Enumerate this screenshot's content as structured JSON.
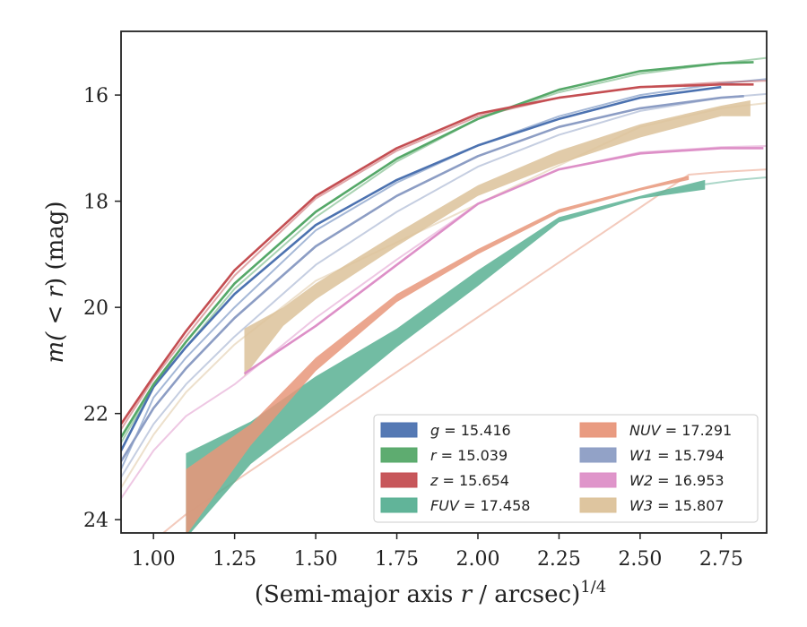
{
  "chart_data": {
    "type": "line",
    "xlabel_main": "(Semi-major axis ",
    "xlabel_var": "r",
    "xlabel_unit": " / arcsec)",
    "xlabel_exp": "1/4",
    "ylabel_main": "m(",
    "ylabel_lt": " < ",
    "ylabel_var": "r",
    "ylabel_unit": ") (mag)",
    "xlim": [
      0.9,
      2.89
    ],
    "ylim": [
      24.25,
      14.8
    ],
    "x_ticks": [
      1.0,
      1.25,
      1.5,
      1.75,
      2.0,
      2.25,
      2.5,
      2.75
    ],
    "x_tick_labels": [
      "1.00",
      "1.25",
      "1.50",
      "1.75",
      "2.00",
      "2.25",
      "2.50",
      "2.75"
    ],
    "y_ticks": [
      16,
      18,
      20,
      22,
      24
    ],
    "y_tick_labels": [
      "16",
      "18",
      "20",
      "22",
      "24"
    ],
    "grid": false,
    "legend_position": "lower-right",
    "series": [
      {
        "band": "g",
        "label": "g = 15.416",
        "color": "#4c72b0",
        "model": [
          [
            0.9,
            23.05
          ],
          [
            1.0,
            21.7
          ],
          [
            1.1,
            20.95
          ],
          [
            1.25,
            20.0
          ],
          [
            1.5,
            18.55
          ],
          [
            1.75,
            17.65
          ],
          [
            2.0,
            16.95
          ],
          [
            2.25,
            16.4
          ],
          [
            2.5,
            16.0
          ],
          [
            2.75,
            15.78
          ],
          [
            2.89,
            15.7
          ]
        ],
        "data": [
          [
            0.9,
            22.7
          ],
          [
            1.0,
            21.5
          ],
          [
            1.1,
            20.75
          ],
          [
            1.25,
            19.75
          ],
          [
            1.5,
            18.45
          ],
          [
            1.75,
            17.6
          ],
          [
            2.0,
            16.95
          ],
          [
            2.25,
            16.45
          ],
          [
            2.5,
            16.05
          ],
          [
            2.75,
            15.85
          ]
        ]
      },
      {
        "band": "r",
        "label": "r = 15.039",
        "color": "#55a868",
        "model": [
          [
            0.9,
            22.55
          ],
          [
            1.0,
            21.5
          ],
          [
            1.1,
            20.75
          ],
          [
            1.25,
            19.65
          ],
          [
            1.5,
            18.3
          ],
          [
            1.75,
            17.25
          ],
          [
            2.0,
            16.45
          ],
          [
            2.25,
            15.95
          ],
          [
            2.5,
            15.6
          ],
          [
            2.75,
            15.4
          ],
          [
            2.89,
            15.3
          ]
        ],
        "data": [
          [
            0.9,
            22.45
          ],
          [
            1.0,
            21.45
          ],
          [
            1.1,
            20.65
          ],
          [
            1.25,
            19.55
          ],
          [
            1.5,
            18.2
          ],
          [
            1.75,
            17.2
          ],
          [
            2.0,
            16.45
          ],
          [
            2.25,
            15.9
          ],
          [
            2.5,
            15.55
          ],
          [
            2.75,
            15.4
          ],
          [
            2.85,
            15.38
          ]
        ]
      },
      {
        "band": "z",
        "label": "z = 15.654",
        "color": "#c44e52",
        "model": [
          [
            0.9,
            22.3
          ],
          [
            1.0,
            21.35
          ],
          [
            1.1,
            20.55
          ],
          [
            1.25,
            19.4
          ],
          [
            1.5,
            17.95
          ],
          [
            1.75,
            17.05
          ],
          [
            2.0,
            16.4
          ],
          [
            2.25,
            16.05
          ],
          [
            2.5,
            15.85
          ],
          [
            2.75,
            15.76
          ],
          [
            2.89,
            15.73
          ]
        ],
        "data": [
          [
            0.9,
            22.2
          ],
          [
            1.0,
            21.3
          ],
          [
            1.1,
            20.45
          ],
          [
            1.25,
            19.3
          ],
          [
            1.5,
            17.9
          ],
          [
            1.75,
            17.0
          ],
          [
            2.0,
            16.35
          ],
          [
            2.25,
            16.05
          ],
          [
            2.5,
            15.85
          ],
          [
            2.75,
            15.8
          ],
          [
            2.85,
            15.8
          ]
        ]
      },
      {
        "band": "FUV",
        "label": "FUV = 17.458",
        "color": "#59b093",
        "model": [
          [
            2.7,
            17.68
          ],
          [
            2.8,
            17.6
          ],
          [
            2.89,
            17.55
          ]
        ],
        "data_upper": [
          [
            1.1,
            22.75
          ],
          [
            1.3,
            22.15
          ],
          [
            1.5,
            21.3
          ],
          [
            1.75,
            20.4
          ],
          [
            2.0,
            19.3
          ],
          [
            2.25,
            18.3
          ],
          [
            2.5,
            17.9
          ],
          [
            2.7,
            17.6
          ]
        ],
        "data_lower": [
          [
            1.1,
            24.35
          ],
          [
            1.3,
            22.95
          ],
          [
            1.5,
            22.0
          ],
          [
            1.75,
            20.75
          ],
          [
            2.0,
            19.6
          ],
          [
            2.25,
            18.4
          ],
          [
            2.5,
            17.95
          ],
          [
            2.7,
            17.78
          ]
        ]
      },
      {
        "band": "NUV",
        "label": "NUV = 17.291",
        "color": "#e8967a",
        "model": [
          [
            1.0,
            24.4
          ],
          [
            1.1,
            23.9
          ],
          [
            2.65,
            17.5
          ],
          [
            2.75,
            17.45
          ],
          [
            2.89,
            17.4
          ]
        ],
        "data_upper": [
          [
            1.1,
            23.05
          ],
          [
            1.3,
            22.2
          ],
          [
            1.5,
            20.95
          ],
          [
            1.75,
            19.75
          ],
          [
            2.0,
            18.9
          ],
          [
            2.25,
            18.15
          ],
          [
            2.5,
            17.75
          ],
          [
            2.65,
            17.52
          ]
        ],
        "data_lower": [
          [
            1.1,
            24.3
          ],
          [
            1.3,
            22.6
          ],
          [
            1.5,
            21.2
          ],
          [
            1.75,
            19.9
          ],
          [
            2.0,
            19.0
          ],
          [
            2.25,
            18.22
          ],
          [
            2.5,
            17.8
          ],
          [
            2.65,
            17.6
          ]
        ]
      },
      {
        "band": "W1",
        "label": "W1 = 15.794",
        "color": "#8c9dc4",
        "model": [
          [
            0.9,
            23.2
          ],
          [
            1.0,
            22.2
          ],
          [
            1.1,
            21.45
          ],
          [
            1.25,
            20.55
          ],
          [
            1.5,
            19.2
          ],
          [
            1.75,
            18.2
          ],
          [
            2.0,
            17.35
          ],
          [
            2.25,
            16.75
          ],
          [
            2.5,
            16.3
          ],
          [
            2.75,
            16.05
          ],
          [
            2.89,
            15.98
          ]
        ],
        "data": [
          [
            0.9,
            22.9
          ],
          [
            1.0,
            21.9
          ],
          [
            1.1,
            21.15
          ],
          [
            1.25,
            20.2
          ],
          [
            1.5,
            18.85
          ],
          [
            1.75,
            17.9
          ],
          [
            2.0,
            17.15
          ],
          [
            2.25,
            16.6
          ],
          [
            2.5,
            16.25
          ],
          [
            2.75,
            16.05
          ],
          [
            2.82,
            16.02
          ]
        ]
      },
      {
        "band": "W2",
        "label": "W2 = 16.953",
        "color": "#dd8fc7",
        "model": [
          [
            0.9,
            23.6
          ],
          [
            1.0,
            22.7
          ],
          [
            1.1,
            22.05
          ],
          [
            1.25,
            21.45
          ],
          [
            1.5,
            20.2
          ],
          [
            1.75,
            19.1
          ],
          [
            2.0,
            18.05
          ],
          [
            2.25,
            17.4
          ],
          [
            2.5,
            17.08
          ],
          [
            2.75,
            16.98
          ],
          [
            2.89,
            16.96
          ]
        ],
        "data": [
          [
            1.28,
            21.25
          ],
          [
            1.5,
            20.35
          ],
          [
            1.75,
            19.2
          ],
          [
            2.0,
            18.05
          ],
          [
            2.25,
            17.4
          ],
          [
            2.5,
            17.1
          ],
          [
            2.75,
            17.0
          ],
          [
            2.88,
            17.0
          ]
        ]
      },
      {
        "band": "W3",
        "label": "W3 = 15.807",
        "color": "#dcc29a",
        "model": [
          [
            0.9,
            23.4
          ],
          [
            1.0,
            22.4
          ],
          [
            1.1,
            21.6
          ],
          [
            1.25,
            20.7
          ],
          [
            1.5,
            19.5
          ],
          [
            2.5,
            16.6
          ],
          [
            2.75,
            16.25
          ],
          [
            2.89,
            16.15
          ]
        ],
        "data_upper": [
          [
            1.28,
            20.4
          ],
          [
            1.4,
            20.0
          ],
          [
            1.5,
            19.55
          ],
          [
            1.75,
            18.6
          ],
          [
            2.0,
            17.7
          ],
          [
            2.25,
            17.05
          ],
          [
            2.5,
            16.55
          ],
          [
            2.75,
            16.2
          ],
          [
            2.84,
            16.1
          ]
        ],
        "data_lower": [
          [
            1.28,
            21.3
          ],
          [
            1.4,
            20.35
          ],
          [
            1.5,
            19.85
          ],
          [
            1.75,
            18.85
          ],
          [
            2.0,
            17.9
          ],
          [
            2.25,
            17.3
          ],
          [
            2.5,
            16.8
          ],
          [
            2.75,
            16.4
          ],
          [
            2.84,
            16.4
          ]
        ]
      }
    ]
  }
}
